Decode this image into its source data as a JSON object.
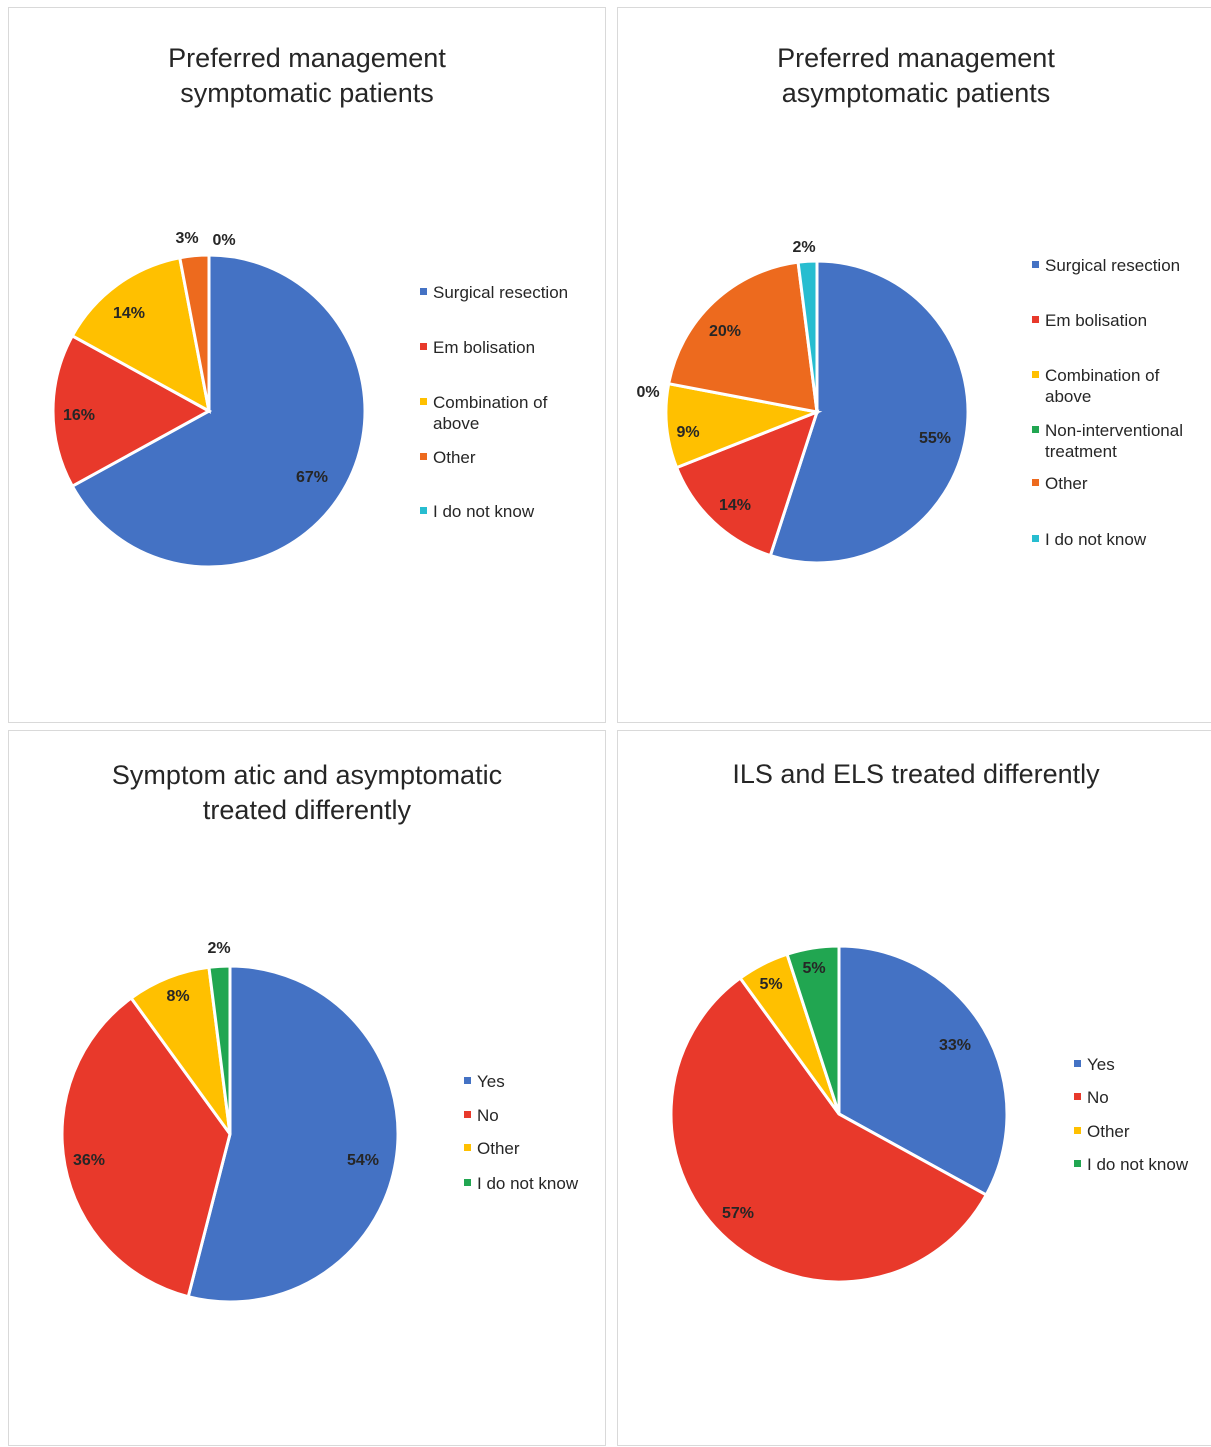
{
  "chart_data": [
    {
      "type": "pie",
      "title": [
        "Preferred management",
        "symptomatic patients"
      ],
      "categories": [
        "Surgical resection",
        "Embolisation",
        "Combination of above",
        "Other",
        "I do not know"
      ],
      "legend_labels": [
        [
          "Surgical resection"
        ],
        [
          "Em bolisation"
        ],
        [
          "Combination of",
          "above"
        ],
        [
          "Other"
        ],
        [
          "I do not know"
        ]
      ],
      "values": [
        67,
        16,
        14,
        3,
        0
      ],
      "data_labels": [
        "67%",
        "16%",
        "14%",
        "3%",
        "0%"
      ],
      "colors": [
        "#4472c4",
        "#e8392b",
        "#ffc000",
        "#ed6a1e",
        "#27bdd0"
      ],
      "legend_position": "right"
    },
    {
      "type": "pie",
      "title": [
        "Preferred management",
        "asymptomatic patients"
      ],
      "categories": [
        "Surgical resection",
        "Embolisation",
        "Combination of above",
        "Non-interventional treatment",
        "Other",
        "I do not know"
      ],
      "legend_labels": [
        [
          "Surgical resection"
        ],
        [
          "Em bolisation"
        ],
        [
          "Combination of",
          "above"
        ],
        [
          "Non-interventional",
          "treatment"
        ],
        [
          "Other"
        ],
        [
          "I do not know"
        ]
      ],
      "values": [
        55,
        14,
        9,
        0,
        20,
        2
      ],
      "data_labels": [
        "55%",
        "14%",
        "9%",
        "0%",
        "20%",
        "2%"
      ],
      "colors": [
        "#4472c4",
        "#e8392b",
        "#ffc000",
        "#21a651",
        "#ed6a1e",
        "#27bdd0"
      ],
      "legend_position": "right"
    },
    {
      "type": "pie",
      "title": [
        "Symptom atic and asymptomatic",
        "treated differently"
      ],
      "categories": [
        "Yes",
        "No",
        "Other",
        "I do not know"
      ],
      "legend_labels": [
        [
          "Yes"
        ],
        [
          "No"
        ],
        [
          "Other"
        ],
        [
          "I do not know"
        ]
      ],
      "values": [
        54,
        36,
        8,
        2
      ],
      "data_labels": [
        "54%",
        "36%",
        "8%",
        "2%"
      ],
      "colors": [
        "#4472c4",
        "#e8392b",
        "#ffc000",
        "#21a651"
      ],
      "legend_position": "right"
    },
    {
      "type": "pie",
      "title": [
        "ILS and ELS treated differently"
      ],
      "categories": [
        "Yes",
        "No",
        "Other",
        "I do not know"
      ],
      "legend_labels": [
        [
          "Yes"
        ],
        [
          "No"
        ],
        [
          "Other"
        ],
        [
          "I do not know"
        ]
      ],
      "values": [
        33,
        57,
        5,
        5
      ],
      "data_labels": [
        "33%",
        "57%",
        "5%",
        "5%"
      ],
      "colors": [
        "#4472c4",
        "#e8392b",
        "#ffc000",
        "#21a651"
      ],
      "legend_position": "right"
    }
  ]
}
